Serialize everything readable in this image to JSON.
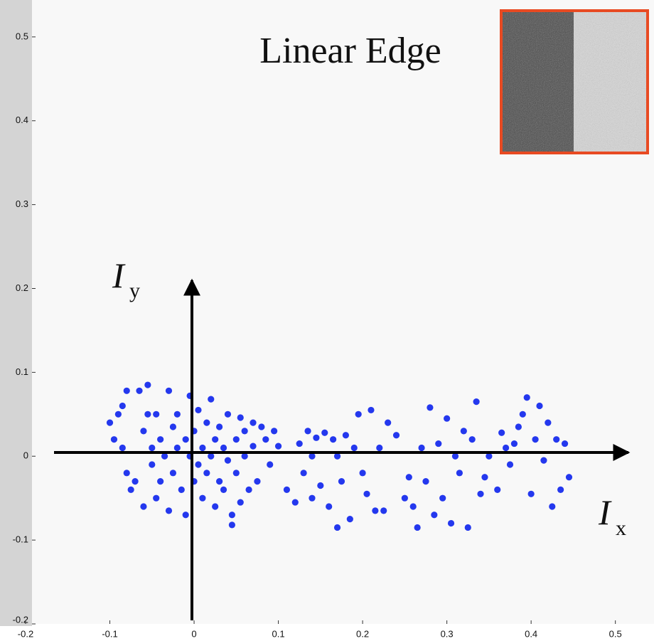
{
  "chart_data": {
    "type": "scatter",
    "title": "Linear Edge",
    "x_axis_label": {
      "symbol": "I",
      "subscript": "x"
    },
    "y_axis_label": {
      "symbol": "I",
      "subscript": "y"
    },
    "color": "#2438ee",
    "xlim": [
      -0.2,
      0.545
    ],
    "ylim": [
      -0.2,
      0.544
    ],
    "xticks": [
      -0.2,
      -0.1,
      0,
      0.1,
      0.2,
      0.3,
      0.4,
      0.5
    ],
    "yticks": [
      -0.2,
      -0.1,
      0,
      0.1,
      0.2,
      0.3,
      0.4,
      0.5
    ],
    "x": [
      -0.1,
      -0.095,
      -0.09,
      -0.085,
      -0.08,
      -0.085,
      -0.08,
      -0.075,
      -0.07,
      -0.065,
      -0.06,
      -0.06,
      -0.055,
      -0.055,
      -0.05,
      -0.05,
      -0.045,
      -0.045,
      -0.04,
      -0.04,
      -0.035,
      -0.03,
      -0.03,
      -0.025,
      -0.025,
      -0.02,
      -0.02,
      -0.015,
      -0.01,
      -0.01,
      -0.005,
      -0.005,
      0,
      0,
      0.005,
      0.005,
      0.01,
      0.01,
      0.015,
      0.015,
      0.02,
      0.02,
      0.025,
      0.025,
      0.03,
      0.03,
      0.035,
      0.035,
      0.04,
      0.04,
      0.045,
      0.045,
      0.05,
      0.05,
      0.055,
      0.055,
      0.06,
      0.06,
      0.065,
      0.07,
      0.07,
      0.075,
      0.08,
      0.085,
      0.09,
      0.095,
      0.1,
      0.11,
      0.12,
      0.125,
      0.13,
      0.135,
      0.14,
      0.14,
      0.145,
      0.15,
      0.155,
      0.16,
      0.165,
      0.17,
      0.17,
      0.175,
      0.18,
      0.185,
      0.19,
      0.195,
      0.2,
      0.205,
      0.21,
      0.215,
      0.22,
      0.225,
      0.23,
      0.24,
      0.25,
      0.255,
      0.26,
      0.265,
      0.27,
      0.275,
      0.28,
      0.285,
      0.29,
      0.295,
      0.3,
      0.305,
      0.31,
      0.315,
      0.32,
      0.325,
      0.33,
      0.335,
      0.34,
      0.345,
      0.35,
      0.36,
      0.365,
      0.37,
      0.375,
      0.38,
      0.385,
      0.39,
      0.395,
      0.4,
      0.405,
      0.41,
      0.415,
      0.42,
      0.425,
      0.43,
      0.435,
      0.44,
      0.445
    ],
    "y": [
      0.04,
      0.02,
      0.05,
      0.06,
      0.078,
      0.01,
      -0.02,
      -0.04,
      -0.03,
      0.078,
      -0.06,
      0.03,
      0.085,
      0.05,
      -0.01,
      0.01,
      0.05,
      -0.05,
      0.02,
      -0.03,
      0,
      0.078,
      -0.065,
      0.035,
      -0.02,
      0.01,
      0.05,
      -0.04,
      0.02,
      -0.07,
      0.072,
      0,
      -0.03,
      0.03,
      0.055,
      -0.01,
      0.01,
      -0.05,
      0.04,
      -0.02,
      0.068,
      0,
      -0.06,
      0.02,
      0.035,
      -0.03,
      0.01,
      -0.04,
      0.05,
      -0.005,
      -0.07,
      -0.082,
      0.02,
      -0.02,
      0.046,
      -0.055,
      0,
      0.03,
      -0.04,
      0.04,
      0.012,
      -0.03,
      0.035,
      0.02,
      -0.01,
      0.03,
      0.012,
      -0.04,
      -0.055,
      0.015,
      -0.02,
      0.03,
      0,
      -0.05,
      0.022,
      -0.035,
      0.028,
      -0.06,
      0.02,
      -0.085,
      0,
      -0.03,
      0.025,
      -0.075,
      0.01,
      0.05,
      -0.02,
      -0.045,
      0.055,
      -0.065,
      0.01,
      -0.065,
      0.04,
      0.025,
      -0.05,
      -0.025,
      -0.06,
      -0.085,
      0.01,
      -0.03,
      0.058,
      -0.07,
      0.015,
      -0.05,
      0.045,
      -0.08,
      0,
      -0.02,
      0.03,
      -0.085,
      0.02,
      0.065,
      -0.045,
      -0.025,
      0,
      -0.04,
      0.028,
      0.01,
      -0.01,
      0.015,
      0.035,
      0.05,
      0.07,
      -0.045,
      0.02,
      0.06,
      -0.005,
      0.04,
      -0.06,
      0.02,
      -0.04,
      0.015,
      -0.025
    ]
  }
}
